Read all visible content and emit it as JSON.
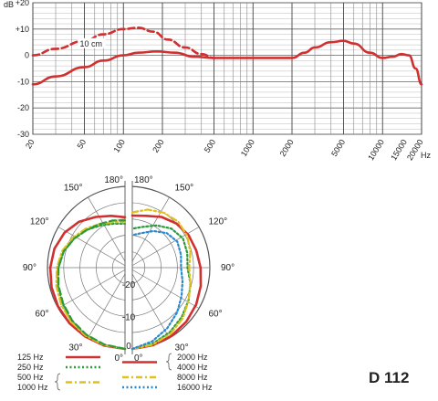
{
  "model": "D 112",
  "chart_data": [
    {
      "type": "line",
      "title": "",
      "y_unit": "dB",
      "x_unit": "Hz",
      "x_scale": "log",
      "xlim": [
        20,
        20000
      ],
      "ylim": [
        -30,
        20
      ],
      "x_ticks": [
        20,
        50,
        100,
        200,
        500,
        1000,
        2000,
        5000,
        10000,
        15000,
        20000
      ],
      "x_tick_labels": [
        "20",
        "50",
        "100",
        "200",
        "500",
        "1000",
        "2000",
        "5000",
        "10000",
        "15000",
        "20000"
      ],
      "y_ticks": [
        20,
        10,
        0,
        -10,
        -20,
        -30
      ],
      "y_tick_labels": [
        "+20",
        "+10",
        "0",
        "-10",
        "-20",
        "-30"
      ],
      "grid": true,
      "series": [
        {
          "name": "",
          "style": "solid",
          "color": "#d03030",
          "x": [
            20,
            30,
            50,
            70,
            100,
            130,
            180,
            250,
            350,
            500,
            800,
            1000,
            1500,
            2000,
            2500,
            3000,
            4000,
            5000,
            6000,
            8000,
            10000,
            12000,
            14000,
            16000,
            18000,
            20000
          ],
          "y": [
            -11,
            -8,
            -4.5,
            -2,
            0,
            1,
            1.5,
            1,
            -0.5,
            -1,
            -1,
            -1,
            -1,
            -1,
            1,
            3,
            5,
            5.5,
            4.5,
            1,
            -1,
            -0.5,
            0.5,
            0,
            -5,
            -11
          ]
        },
        {
          "name": "10 cm",
          "style": "dashed",
          "color": "#d03030",
          "x": [
            20,
            30,
            50,
            70,
            100,
            130,
            170,
            220,
            300,
            400,
            500
          ],
          "y": [
            0,
            2.5,
            5.5,
            8,
            10,
            10.5,
            9,
            6,
            3,
            0.5,
            -1
          ]
        }
      ]
    },
    {
      "type": "polar",
      "title": "",
      "angle_labels": [
        "180°",
        "150°",
        "120°",
        "90°",
        "60°",
        "30°",
        "0°"
      ],
      "radial_labels": [
        "-20",
        "-10",
        "0"
      ],
      "rlim": [
        -25,
        0
      ],
      "grid": true,
      "legend_placement": "bottom",
      "left_half_series": [
        {
          "name": "125 Hz",
          "style": "solid",
          "color": "#d03030",
          "angles": [
            0,
            15,
            30,
            45,
            60,
            75,
            90,
            105,
            120,
            135,
            150,
            165,
            180
          ],
          "levels": [
            0,
            -0.2,
            -0.5,
            -0.8,
            -1.2,
            -1.6,
            -2,
            -2.5,
            -3.5,
            -5,
            -7,
            -8.5,
            -9.5
          ]
        },
        {
          "name": "250 Hz",
          "style": "dotted",
          "color": "#2a9a3a",
          "angles": [
            0,
            15,
            30,
            45,
            60,
            75,
            90,
            105,
            120,
            135,
            150,
            165,
            180
          ],
          "levels": [
            0,
            -0.4,
            -1,
            -1.8,
            -2.8,
            -3.6,
            -4.5,
            -5.5,
            -7,
            -8.5,
            -10,
            -11,
            -11.5
          ]
        },
        {
          "name": "500 Hz",
          "style": "dash-dot",
          "color": "#e0c020",
          "angles": [
            0,
            15,
            30,
            45,
            60,
            75,
            90,
            105,
            120,
            135,
            150,
            165,
            180
          ],
          "levels": [
            0,
            -0.3,
            -0.8,
            -1.5,
            -2.3,
            -3.1,
            -4,
            -5,
            -6.5,
            -8,
            -9.5,
            -10.5,
            -11
          ]
        },
        {
          "name": "1000 Hz",
          "style": "dashed",
          "color": "#2a9a3a",
          "angles": [
            0,
            15,
            30,
            45,
            60,
            75,
            90,
            105,
            120,
            135,
            150,
            165,
            180
          ],
          "levels": [
            0,
            -0.5,
            -1.2,
            -2,
            -3,
            -3.8,
            -4.5,
            -5.5,
            -7,
            -8.5,
            -9.5,
            -10,
            -10.5
          ]
        }
      ],
      "right_half_series": [
        {
          "name": "2000 Hz",
          "style": "solid",
          "color": "#d03030",
          "angles": [
            0,
            15,
            30,
            45,
            60,
            75,
            90,
            105,
            120,
            135,
            150,
            165,
            180
          ],
          "levels": [
            0,
            -0.3,
            -0.8,
            -1.5,
            -2.3,
            -3.2,
            -4,
            -4.6,
            -5,
            -5.8,
            -7,
            -8.5,
            -9
          ]
        },
        {
          "name": "4000 Hz",
          "style": "dotted",
          "color": "#2a9a3a",
          "angles": [
            0,
            15,
            30,
            45,
            60,
            75,
            90,
            105,
            120,
            135,
            150,
            165,
            180
          ],
          "levels": [
            0,
            -0.8,
            -2,
            -3.5,
            -5,
            -6.5,
            -8,
            -7.5,
            -7,
            -8,
            -10,
            -12,
            -13
          ]
        },
        {
          "name": "8000 Hz",
          "style": "dash-dot",
          "color": "#e0c020",
          "angles": [
            0,
            15,
            30,
            45,
            60,
            75,
            90,
            105,
            120,
            135,
            150,
            165,
            180
          ],
          "levels": [
            0,
            -0.5,
            -1.5,
            -3,
            -5,
            -6.5,
            -7.5,
            -6.5,
            -5.5,
            -5,
            -5.5,
            -6.5,
            -8
          ]
        },
        {
          "name": "16000 Hz",
          "style": "dotted",
          "color": "#2a8ad0",
          "angles": [
            0,
            15,
            30,
            45,
            60,
            75,
            90,
            105,
            120,
            135,
            150,
            165,
            180
          ],
          "levels": [
            0,
            -1.5,
            -3.5,
            -5.5,
            -7.5,
            -9,
            -10,
            -9.5,
            -9,
            -10,
            -12,
            -14,
            -15
          ]
        }
      ]
    }
  ]
}
